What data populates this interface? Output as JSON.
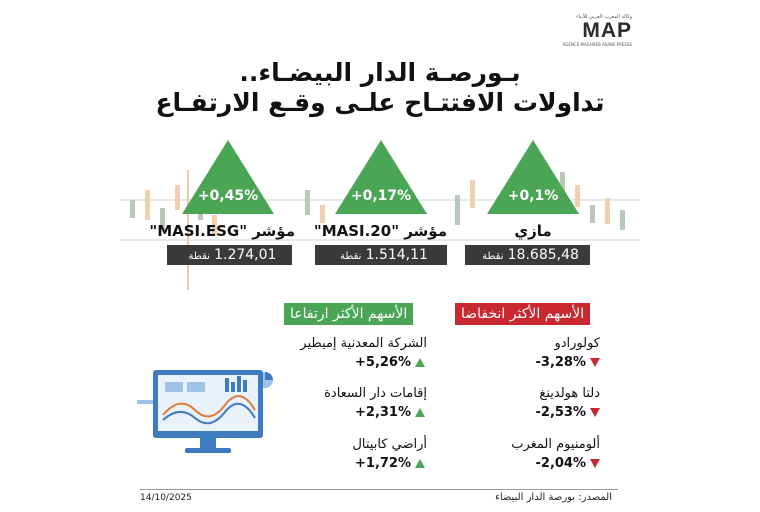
{
  "logo": {
    "arabic": "وكالة المغرب العربي للأنباء",
    "name": "MAP",
    "subtitle": "AGENCE MAGHREB ARABE PRESSE"
  },
  "title": {
    "line1": "بـورصـة الدار البيضـاء..",
    "line2": "تداولات الافتتـاح علـى وقـع الارتفـاع"
  },
  "indices": [
    {
      "name": "مازي",
      "change": "+0,1%",
      "value": "18.685,48",
      "unit": "نقطة"
    },
    {
      "name": "مؤشر \"MASI.20\"",
      "change": "+0,17%",
      "value": "1.514,11",
      "unit": "نقطة"
    },
    {
      "name": "مؤشر \"MASI.ESG\"",
      "change": "+0,45%",
      "value": "1.274,01",
      "unit": "نقطة"
    }
  ],
  "gainers": {
    "title": "الأسهم الأكثر ارتفاعا",
    "items": [
      {
        "name": "الشركة المعدنية إميطير",
        "change": "+5,26%"
      },
      {
        "name": "إقامات دار السعادة",
        "change": "+2,31%"
      },
      {
        "name": "أراضي كابيتال",
        "change": "+1,72%"
      }
    ]
  },
  "losers": {
    "title": "الأسهم الأكثر انخفاضا",
    "items": [
      {
        "name": "كولورادو",
        "change": "-3,28%"
      },
      {
        "name": "دلتا هولدينغ",
        "change": "-2,53%"
      },
      {
        "name": "ألومنيوم المغرب",
        "change": "-2,04%"
      }
    ]
  },
  "footer": {
    "date": "14/10/2025",
    "source": "المصدر: بورصة الدار البيضاء"
  },
  "colors": {
    "green": "#4aa555",
    "red": "#c9282e",
    "dark": "#3a3a3a"
  }
}
